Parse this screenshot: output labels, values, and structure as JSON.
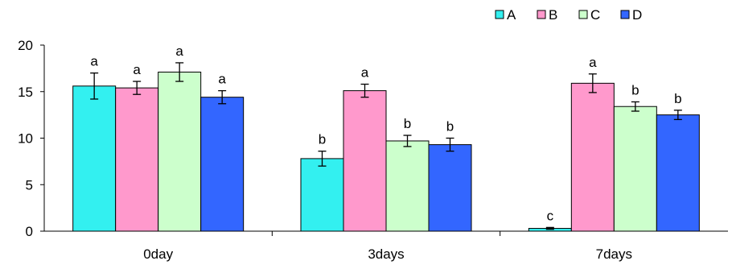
{
  "chart_data": {
    "type": "bar",
    "categories": [
      "0day",
      "3days",
      "7days"
    ],
    "series": [
      {
        "name": "A",
        "color": "#33f0f0",
        "values": [
          15.6,
          7.8,
          0.3
        ],
        "errors": [
          1.4,
          0.8,
          0.1
        ],
        "labels": [
          "a",
          "b",
          "c"
        ]
      },
      {
        "name": "B",
        "color": "#ff99cc",
        "values": [
          15.4,
          15.1,
          15.9
        ],
        "errors": [
          0.7,
          0.7,
          1.0
        ],
        "labels": [
          "a",
          "a",
          "a"
        ]
      },
      {
        "name": "C",
        "color": "#ccffcc",
        "values": [
          17.1,
          9.7,
          13.4
        ],
        "errors": [
          1.0,
          0.6,
          0.5
        ],
        "labels": [
          "a",
          "b",
          "b"
        ]
      },
      {
        "name": "D",
        "color": "#3366ff",
        "values": [
          14.4,
          9.3,
          12.5
        ],
        "errors": [
          0.7,
          0.7,
          0.5
        ],
        "labels": [
          "a",
          "b",
          "b"
        ]
      }
    ],
    "ylim": [
      0,
      20
    ],
    "yticks": [
      "0",
      "5",
      "10",
      "15",
      "20"
    ],
    "title": "",
    "xlabel": "",
    "ylabel": "",
    "legend_position": "top-right",
    "grid": false
  }
}
